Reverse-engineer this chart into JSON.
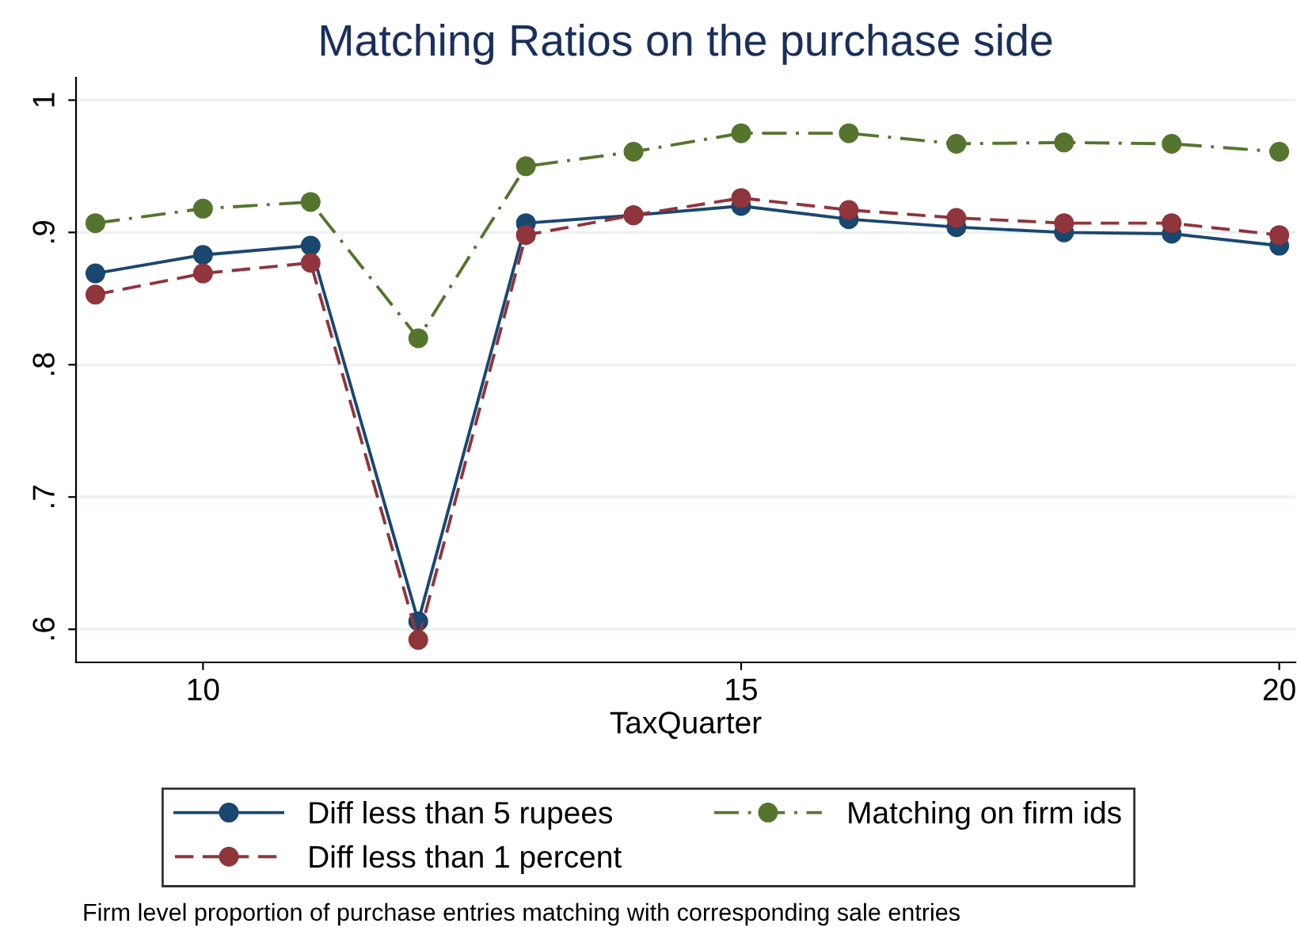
{
  "chart_data": {
    "type": "line",
    "title": "Matching Ratios on the purchase side",
    "xlabel": "TaxQuarter",
    "x": [
      9,
      10,
      11,
      12,
      13,
      14,
      15,
      16,
      17,
      18,
      19,
      20
    ],
    "series": [
      {
        "name": "Diff less than 5 rupees",
        "color": "#1a476f",
        "line_style": "solid",
        "values": [
          0.869,
          0.883,
          0.89,
          0.606,
          0.907,
          0.913,
          0.92,
          0.91,
          0.904,
          0.9,
          0.899,
          0.89
        ]
      },
      {
        "name": "Diff less than 1 percent",
        "color": "#90353b",
        "line_style": "dashed",
        "values": [
          0.853,
          0.869,
          0.877,
          0.592,
          0.898,
          0.913,
          0.926,
          0.917,
          0.911,
          0.907,
          0.907,
          0.898
        ]
      },
      {
        "name": "Matching on firm ids",
        "color": "#55752f",
        "line_style": "dashdot",
        "values": [
          0.907,
          0.918,
          0.923,
          0.82,
          0.95,
          0.961,
          0.975,
          0.975,
          0.967,
          0.968,
          0.967,
          0.961
        ]
      }
    ],
    "marker": "circle",
    "xlim": [
      8.82,
      20.15
    ],
    "xticks": [
      10,
      15,
      20
    ],
    "ylim": [
      0.575,
      1.017
    ],
    "yticks": [
      {
        "value": 0.6,
        "label": ".6"
      },
      {
        "value": 0.7,
        "label": ".7"
      },
      {
        "value": 0.8,
        "label": ".8"
      },
      {
        "value": 0.9,
        "label": ".9"
      },
      {
        "value": 1,
        "label": "1"
      }
    ],
    "grid": "y",
    "legend": "bottom",
    "annotations": [
      "Firm level proportion of purchase entries matching with corresponding sale entries"
    ]
  }
}
